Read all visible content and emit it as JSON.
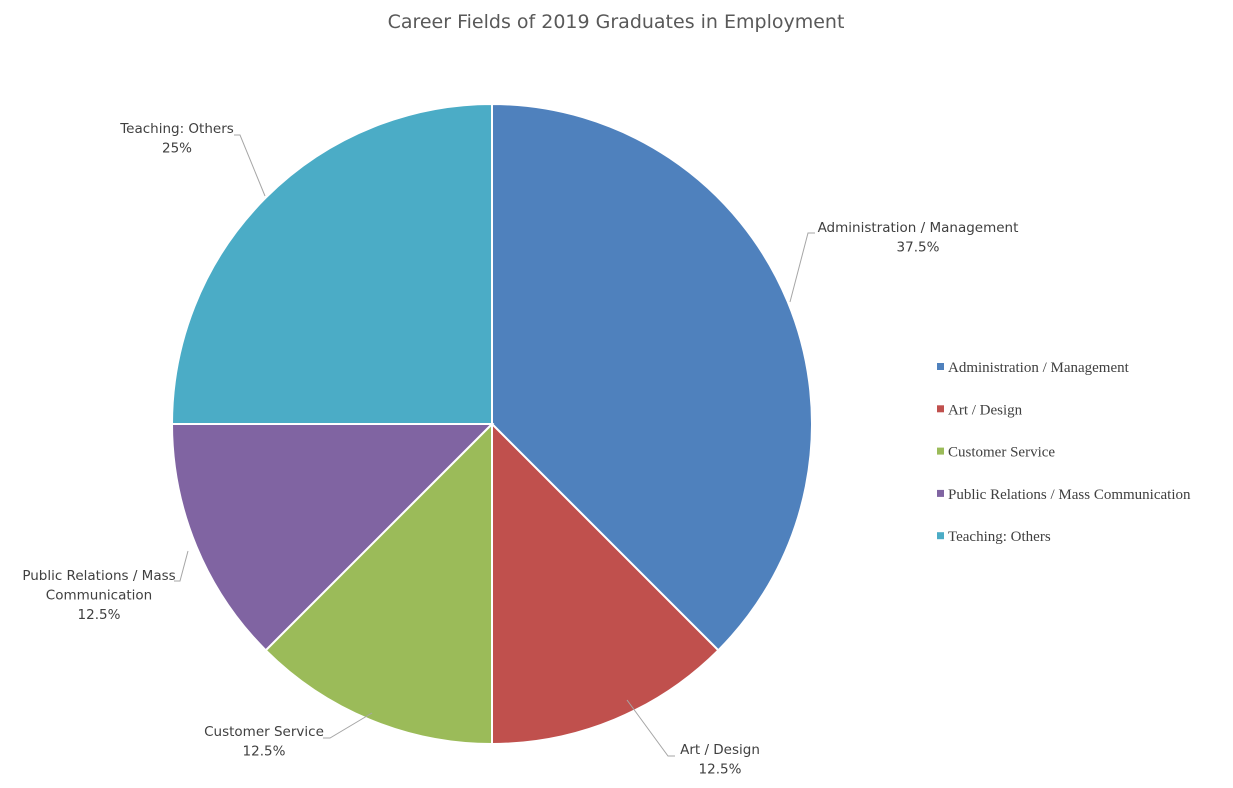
{
  "chart_data": {
    "type": "pie",
    "title": "Career Fields of 2019 Graduates in Employment",
    "categories": [
      "Administration / Management",
      "Art / Design",
      "Customer Service",
      "Public Relations / Mass Communication",
      "Teaching: Others"
    ],
    "values": [
      37.5,
      12.5,
      12.5,
      12.5,
      25
    ],
    "data_labels": [
      {
        "name_lines": [
          "Administration / Management"
        ],
        "value": "37.5%"
      },
      {
        "name_lines": [
          "Art / Design"
        ],
        "value": "12.5%"
      },
      {
        "name_lines": [
          "Customer Service"
        ],
        "value": "12.5%"
      },
      {
        "name_lines": [
          "Public Relations / Mass",
          "Communication"
        ],
        "value": "12.5%"
      },
      {
        "name_lines": [
          "Teaching: Others"
        ],
        "value": "25%"
      }
    ],
    "colors": [
      "#4f81bd",
      "#c0504d",
      "#9bbb59",
      "#8064a2",
      "#4bacc6"
    ],
    "legend_position": "right",
    "start_angle": "12 o'clock, clockwise"
  }
}
